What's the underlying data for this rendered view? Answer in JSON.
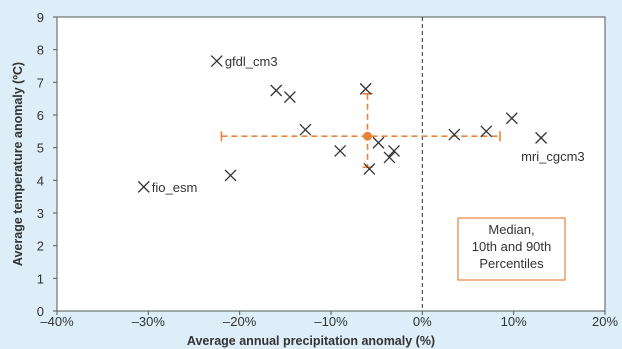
{
  "chart_data": {
    "type": "scatter",
    "xlabel": "Average annual precipitation anomaly (%)",
    "ylabel": "Average temperature anomaly (ºC)",
    "xlim": [
      -40,
      20
    ],
    "ylim": [
      0,
      9
    ],
    "x_ticks": [
      -40,
      -30,
      -20,
      -10,
      0,
      10,
      20
    ],
    "x_tick_labels": [
      "–40%",
      "–30%",
      "–20%",
      "–10%",
      "0%",
      "10%",
      "20%"
    ],
    "y_ticks": [
      0,
      1,
      2,
      3,
      4,
      5,
      6,
      7,
      8,
      9
    ],
    "y_tick_labels": [
      "0",
      "1",
      "2",
      "3",
      "4",
      "5",
      "6",
      "7",
      "8",
      "9"
    ],
    "grid": false,
    "marker": "x",
    "marker_color": "#333333",
    "points": [
      {
        "x": -30.5,
        "y": 3.8,
        "label": "fio_esm"
      },
      {
        "x": -22.5,
        "y": 7.65,
        "label": "gfdl_cm3"
      },
      {
        "x": -21.0,
        "y": 4.15,
        "label": ""
      },
      {
        "x": -16.0,
        "y": 6.75,
        "label": ""
      },
      {
        "x": -14.5,
        "y": 6.55,
        "label": ""
      },
      {
        "x": -12.8,
        "y": 5.55,
        "label": ""
      },
      {
        "x": -9.0,
        "y": 4.9,
        "label": ""
      },
      {
        "x": -6.2,
        "y": 6.8,
        "label": ""
      },
      {
        "x": -5.8,
        "y": 4.35,
        "label": ""
      },
      {
        "x": -4.8,
        "y": 5.15,
        "label": ""
      },
      {
        "x": -3.6,
        "y": 4.7,
        "label": ""
      },
      {
        "x": -3.1,
        "y": 4.9,
        "label": ""
      },
      {
        "x": 3.5,
        "y": 5.4,
        "label": ""
      },
      {
        "x": 7.0,
        "y": 5.5,
        "label": ""
      },
      {
        "x": 9.8,
        "y": 5.9,
        "label": ""
      },
      {
        "x": 13.0,
        "y": 5.3,
        "label": "mri_cgcm3"
      }
    ],
    "median": {
      "x": -6.0,
      "y": 5.35,
      "x_p10": -22.0,
      "x_p90": 8.5,
      "y_p10": 4.4,
      "y_p90": 6.65,
      "color": "#e8843a"
    },
    "reference_line": {
      "x": 0,
      "style": "dashed",
      "color": "#333333"
    },
    "legend": {
      "lines": [
        "Median,",
        "10th and 90th",
        "Percentiles"
      ],
      "placement": "bottom-right",
      "border_color": "#e8843a",
      "background": "#ffffff"
    },
    "background": "#ddeef8",
    "plot_background": "#ffffff"
  }
}
